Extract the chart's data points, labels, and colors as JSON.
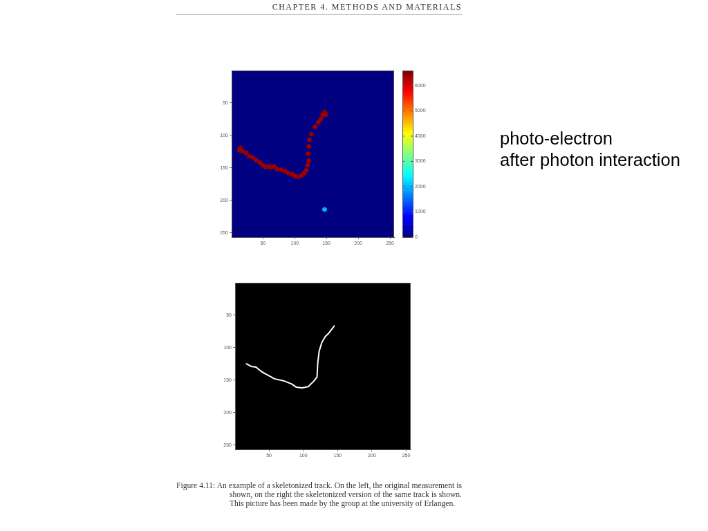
{
  "chart_data": [
    {
      "type": "scatter",
      "annotations": [
        "CHAPTER 4. METHODS AND MATERIALS",
        "photo-electron\nafter photon interaction"
      ],
      "x": [
        147,
        149,
        144,
        141,
        137,
        132,
        126,
        123,
        122,
        121,
        122,
        120,
        118,
        115,
        110,
        105,
        101,
        96,
        90,
        85,
        79,
        72,
        67,
        63,
        58,
        54,
        50,
        45,
        39,
        34,
        28,
        23,
        17,
        14,
        13,
        147
      ],
      "values": [
        64,
        68,
        69,
        75,
        80,
        87,
        98,
        107,
        117,
        128,
        139,
        146,
        154,
        158,
        162,
        164,
        163,
        160,
        158,
        155,
        153,
        152,
        148,
        149,
        148,
        149,
        146,
        142,
        138,
        134,
        132,
        127,
        124,
        119,
        123,
        214
      ],
      "cvalues": [
        6600,
        6400,
        6400,
        6400,
        6400,
        6400,
        6500,
        6400,
        6400,
        6400,
        6400,
        6400,
        6400,
        6400,
        6400,
        6500,
        6400,
        6400,
        6400,
        6400,
        6400,
        6400,
        6400,
        6400,
        6400,
        6500,
        6400,
        6400,
        6400,
        6400,
        6400,
        6400,
        6400,
        6500,
        6400,
        2000
      ],
      "clim": [
        0,
        6600
      ],
      "cticks": [
        0,
        1000,
        2000,
        3000,
        4000,
        5000,
        6000
      ],
      "xlim": [
        0.5,
        256.5
      ],
      "ylim": [
        256.5,
        0.5
      ],
      "xticks": [
        50,
        100,
        150,
        200,
        250
      ],
      "yticks": [
        50,
        100,
        150,
        200,
        250
      ],
      "marker": "circle"
    },
    {
      "type": "line",
      "annotations": [
        "Figure 4.11: An example of a skeletonized track. On the left, the original measurement is shown, on the right the skeletonized version of the same track is shown. This picture has been made by the group at the university of Erlangen."
      ],
      "x": [
        145,
        137,
        132,
        127,
        123,
        121,
        120,
        115,
        107,
        98,
        90,
        83,
        71,
        58,
        53,
        46,
        39,
        31,
        24,
        17
      ],
      "series": [
        {
          "color": "#ffffff",
          "values": [
            67,
            78,
            83,
            92,
            106,
            124,
            145,
            152,
            160,
            162,
            161,
            156,
            151,
            148,
            145,
            141,
            137,
            130,
            129,
            125
          ]
        }
      ],
      "xlim": [
        0.5,
        256.5
      ],
      "ylim": [
        256.5,
        0.5
      ],
      "xticks": [
        50,
        100,
        150,
        200,
        250
      ],
      "yticks": [
        50,
        100,
        150,
        200,
        250
      ]
    }
  ]
}
